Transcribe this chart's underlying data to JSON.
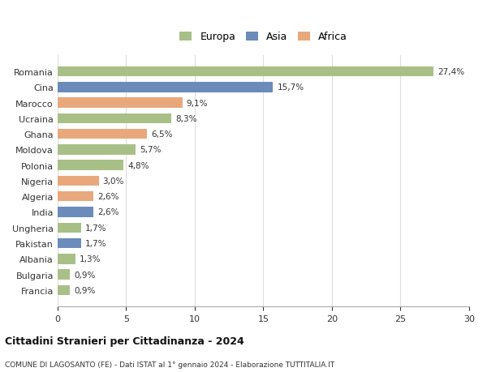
{
  "categories": [
    "Francia",
    "Bulgaria",
    "Albania",
    "Pakistan",
    "Ungheria",
    "India",
    "Algeria",
    "Nigeria",
    "Polonia",
    "Moldova",
    "Ghana",
    "Ucraina",
    "Marocco",
    "Cina",
    "Romania"
  ],
  "values": [
    0.9,
    0.9,
    1.3,
    1.7,
    1.7,
    2.6,
    2.6,
    3.0,
    4.8,
    5.7,
    6.5,
    8.3,
    9.1,
    15.7,
    27.4
  ],
  "labels": [
    "0,9%",
    "0,9%",
    "1,3%",
    "1,7%",
    "1,7%",
    "2,6%",
    "2,6%",
    "3,0%",
    "4,8%",
    "5,7%",
    "6,5%",
    "8,3%",
    "9,1%",
    "15,7%",
    "27,4%"
  ],
  "continents": [
    "Europa",
    "Europa",
    "Europa",
    "Asia",
    "Europa",
    "Asia",
    "Africa",
    "Africa",
    "Europa",
    "Europa",
    "Africa",
    "Europa",
    "Africa",
    "Asia",
    "Europa"
  ],
  "colors": {
    "Europa": "#a8c088",
    "Asia": "#6b8cba",
    "Africa": "#e8a87c"
  },
  "legend_order": [
    "Europa",
    "Asia",
    "Africa"
  ],
  "xlim": [
    0,
    30
  ],
  "xticks": [
    0,
    5,
    10,
    15,
    20,
    25,
    30
  ],
  "title": "Cittadini Stranieri per Cittadinanza - 2024",
  "subtitle": "COMUNE DI LAGOSANTO (FE) - Dati ISTAT al 1° gennaio 2024 - Elaborazione TUTTITALIA.IT",
  "background_color": "#ffffff",
  "grid_color": "#dddddd",
  "bar_height": 0.65
}
